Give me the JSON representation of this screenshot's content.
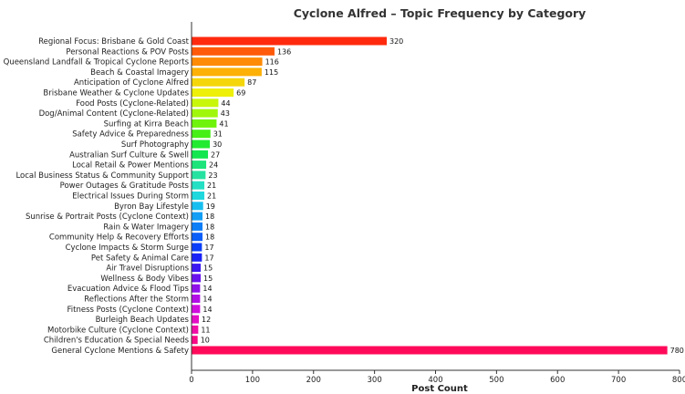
{
  "chart_data": {
    "type": "bar",
    "orientation": "horizontal",
    "title": "Cyclone Alfred – Topic Frequency by Category",
    "xlabel": "Post Count",
    "ylabel": "",
    "xlim": [
      0,
      800
    ],
    "xticks": [
      0,
      100,
      200,
      300,
      400,
      500,
      600,
      700,
      800
    ],
    "grid": false,
    "categories": [
      "Regional Focus: Brisbane & Gold Coast",
      "Personal Reactions & POV Posts",
      "Queensland Landfall & Tropical Cyclone Reports",
      "Beach & Coastal Imagery",
      "Anticipation of Cyclone Alfred",
      "Brisbane Weather & Cyclone Updates",
      "Food Posts (Cyclone-Related)",
      "Dog/Animal Content (Cyclone-Related)",
      "Surfing at Kirra Beach",
      "Safety Advice & Preparedness",
      "Surf Photography",
      "Australian Surf Culture & Swell",
      "Local Retail & Power Mentions",
      "Local Business Status & Community Support",
      "Power Outages & Gratitude Posts",
      "Electrical Issues During Storm",
      "Byron Bay Lifestyle",
      "Sunrise & Portrait Posts (Cyclone Context)",
      "Rain & Water Imagery",
      "Community Help & Recovery Efforts",
      "Cyclone Impacts & Storm Surge",
      "Pet Safety & Animal Care",
      "Air Travel Disruptions",
      "Wellness & Body Vibes",
      "Evacuation Advice & Flood Tips",
      "Reflections After the Storm",
      "Fitness Posts (Cyclone Context)",
      "Burleigh Beach Updates",
      "Motorbike Culture (Cyclone Context)",
      "Children's Education & Special Needs",
      "General Cyclone Mentions & Safety"
    ],
    "values": [
      320,
      136,
      116,
      115,
      87,
      69,
      44,
      43,
      41,
      31,
      30,
      27,
      24,
      23,
      21,
      21,
      19,
      18,
      18,
      18,
      17,
      17,
      15,
      15,
      14,
      14,
      14,
      12,
      11,
      10,
      780
    ],
    "colors": [
      "#ff2a0e",
      "#ff5a0a",
      "#ff8a06",
      "#fdb005",
      "#f5d60a",
      "#eef00a",
      "#c8f70a",
      "#a0f70a",
      "#6ef30a",
      "#46ef16",
      "#22ea30",
      "#14e64f",
      "#1ce47a",
      "#26e2a0",
      "#24dfc3",
      "#1ed8de",
      "#16bef0",
      "#129ef5",
      "#0e7ef7",
      "#0b5ef8",
      "#0a3ef8",
      "#1a22f6",
      "#3a16f2",
      "#6a12ee",
      "#9010ea",
      "#b20ee6",
      "#d00ede",
      "#e40ec6",
      "#f00ea6",
      "#f80a86",
      "#ff0a5a"
    ]
  }
}
